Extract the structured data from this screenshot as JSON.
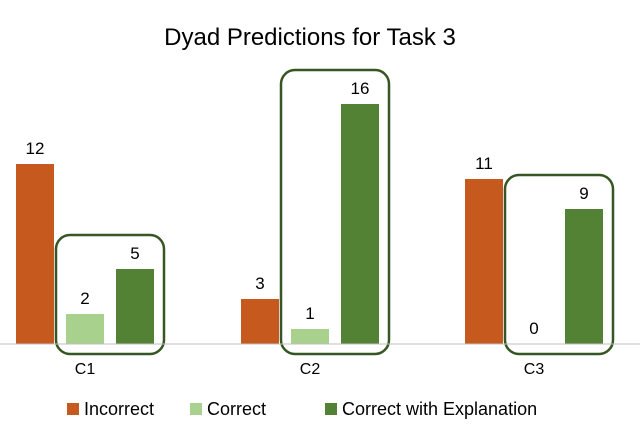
{
  "chart_data": {
    "type": "bar",
    "title": "Dyad Predictions for Task 3",
    "categories": [
      "C1",
      "C2",
      "C3"
    ],
    "series": [
      {
        "name": "Incorrect",
        "values": [
          12,
          3,
          11
        ],
        "color": "#c65a1e"
      },
      {
        "name": "Correct",
        "values": [
          2,
          1,
          0
        ],
        "color": "#a9d18e"
      },
      {
        "name": "Correct with Explanation",
        "values": [
          5,
          16,
          9
        ],
        "color": "#548235"
      }
    ],
    "highlight": {
      "color": "#375623",
      "note_series": [
        "Correct",
        "Correct with Explanation"
      ]
    },
    "ylim": [
      0,
      16
    ],
    "grid": false,
    "legend": "bottom"
  }
}
